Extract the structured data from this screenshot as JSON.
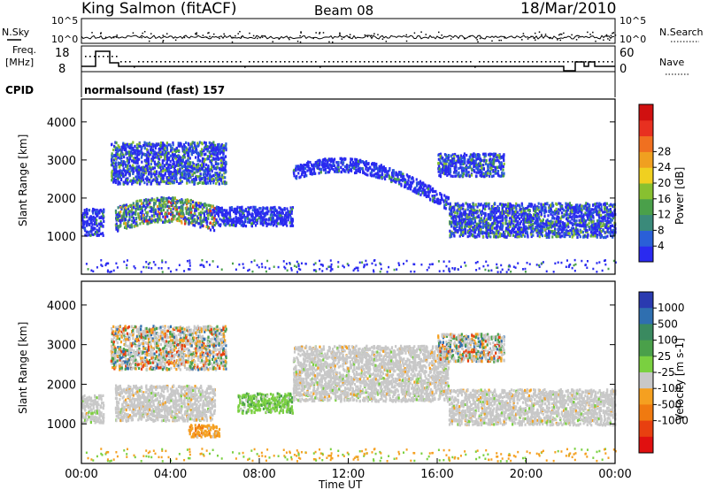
{
  "header": {
    "station": "King Salmon (fitACF)",
    "beam": "Beam 08",
    "date": "18/Mar/2010"
  },
  "top_panels": {
    "nsky_label": "N.Sky",
    "nsky_ticks": [
      "10^5",
      "10^0"
    ],
    "nsearch_label": "N.Search",
    "nsearch_ticks": [
      "10^5",
      "10^0"
    ],
    "freq_label_1": "Freq.",
    "freq_label_2": "[MHz]",
    "freq_ticks": [
      "18",
      "8"
    ],
    "nave_label": "Nave",
    "nave_ticks": [
      "60",
      "0"
    ],
    "cpid_label": "CPID",
    "cpid_text": "normalsound (fast) 157"
  },
  "chart_data": [
    {
      "type": "heatmap",
      "name": "power-panel",
      "ylabel": "Slant Range [km]",
      "yticks": [
        1000,
        2000,
        3000,
        4000
      ],
      "ylim": [
        0,
        4600
      ],
      "colorbar_label": "Power [dB]",
      "colorbar_ticks": [
        "4",
        "8",
        "12",
        "16",
        "20",
        "24",
        "28"
      ],
      "colorbar_colors": [
        "#2a2af0",
        "#2a5fd8",
        "#3a8a7a",
        "#4aa04a",
        "#88c030",
        "#f0d020",
        "#f0a020",
        "#f07020",
        "#e83020",
        "#d01010"
      ],
      "regions": [
        {
          "x": [
            0.0,
            1.0
          ],
          "y": [
            1050,
            1750
          ],
          "level": "low"
        },
        {
          "x": [
            1.5,
            6.0
          ],
          "y": [
            1100,
            2000
          ],
          "level": "high"
        },
        {
          "x": [
            1.3,
            6.5
          ],
          "y": [
            2400,
            3500
          ],
          "level": "mid"
        },
        {
          "x": [
            6.0,
            9.5
          ],
          "y": [
            1300,
            1800
          ],
          "level": "low"
        },
        {
          "x": [
            9.5,
            16.5
          ],
          "y": [
            1600,
            3000
          ],
          "level": "arc"
        },
        {
          "x": [
            16.5,
            24.0
          ],
          "y": [
            1000,
            1900
          ],
          "level": "mid"
        },
        {
          "x": [
            16.0,
            19.0
          ],
          "y": [
            2600,
            3200
          ],
          "level": "mid"
        }
      ]
    },
    {
      "type": "heatmap",
      "name": "velocity-panel",
      "xlabel": "Time UT",
      "ylabel": "Slant Range [km]",
      "xticks": [
        "00:00",
        "04:00",
        "08:00",
        "12:00",
        "16:00",
        "20:00",
        "00:00"
      ],
      "xlim": [
        0,
        24
      ],
      "yticks": [
        1000,
        2000,
        3000,
        4000
      ],
      "ylim": [
        0,
        4600
      ],
      "colorbar_label": "Velocity [m s-1]",
      "colorbar_ticks": [
        "1000",
        "500",
        "100",
        "25",
        "-25",
        "-100",
        "-500",
        "-1000"
      ],
      "colorbar_colors": [
        "#2a3ab0",
        "#2f6fb0",
        "#3a8a60",
        "#4aa04a",
        "#7ad040",
        "#c8c8c8",
        "#f5a020",
        "#f07a10",
        "#e84010",
        "#e01010"
      ],
      "regions": [
        {
          "x": [
            0.0,
            1.0
          ],
          "y": [
            1050,
            1750
          ],
          "level": "ground"
        },
        {
          "x": [
            1.5,
            6.0
          ],
          "y": [
            1100,
            2000
          ],
          "level": "ground"
        },
        {
          "x": [
            1.3,
            6.5
          ],
          "y": [
            2400,
            3500
          ],
          "level": "mixed"
        },
        {
          "x": [
            4.8,
            6.2
          ],
          "y": [
            700,
            1000
          ],
          "level": "neg"
        },
        {
          "x": [
            7.0,
            9.5
          ],
          "y": [
            1300,
            1800
          ],
          "level": "pos"
        },
        {
          "x": [
            9.5,
            16.5
          ],
          "y": [
            1600,
            3000
          ],
          "level": "ground"
        },
        {
          "x": [
            16.5,
            24.0
          ],
          "y": [
            1000,
            1900
          ],
          "level": "ground"
        },
        {
          "x": [
            16.0,
            19.0
          ],
          "y": [
            2600,
            3300
          ],
          "level": "mixed"
        }
      ]
    }
  ]
}
